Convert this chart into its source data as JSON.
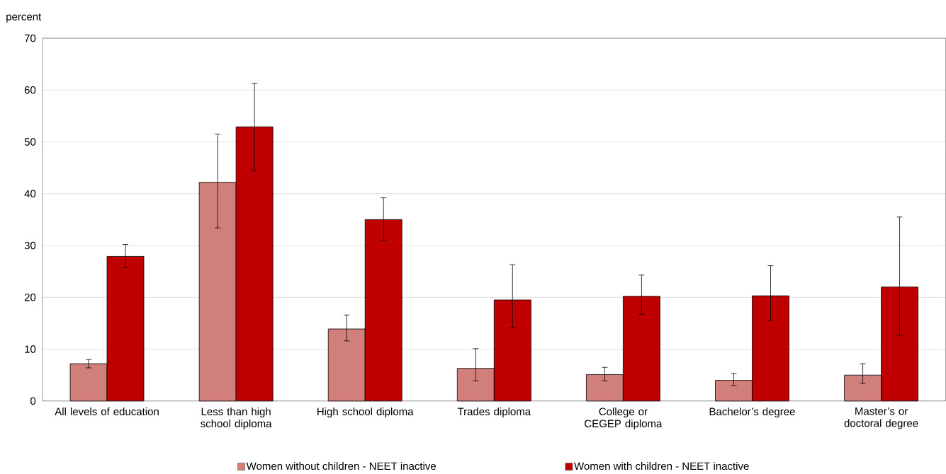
{
  "chart_data": {
    "type": "bar",
    "ylabel": "percent",
    "categories": [
      "All levels of education",
      "Less than high school diploma",
      "High school diploma",
      "Trades diploma",
      "College or CEGEP diploma",
      "Bachelor’s degree",
      "Master’s or doctoral degree"
    ],
    "series": [
      {
        "name": "Women without children - NEET inactive",
        "color": "#d07f7b",
        "values": [
          7.2,
          42.2,
          13.9,
          6.3,
          5.1,
          4.0,
          5.0
        ],
        "errors": [
          [
            6.4,
            8.0
          ],
          [
            33.4,
            51.5
          ],
          [
            11.6,
            16.6
          ],
          [
            3.9,
            10.1
          ],
          [
            3.9,
            6.5
          ],
          [
            3.0,
            5.3
          ],
          [
            3.4,
            7.2
          ]
        ]
      },
      {
        "name": "Women with children - NEET inactive",
        "color": "#c00000",
        "values": [
          27.9,
          52.9,
          35.0,
          19.5,
          20.2,
          20.3,
          22.0
        ],
        "errors": [
          [
            25.7,
            30.2
          ],
          [
            44.4,
            61.3
          ],
          [
            31.0,
            39.2
          ],
          [
            14.2,
            26.3
          ],
          [
            16.7,
            24.3
          ],
          [
            15.6,
            26.1
          ],
          [
            12.7,
            35.5
          ]
        ]
      }
    ],
    "ylim": [
      0,
      70
    ],
    "yticks": [
      0,
      10,
      20,
      30,
      40,
      50,
      60,
      70
    ],
    "grid": "y",
    "legend": "bottom"
  }
}
